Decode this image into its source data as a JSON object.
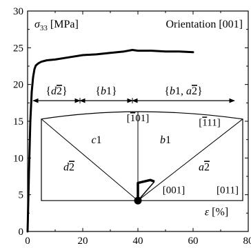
{
  "chart_data": {
    "type": "line",
    "ylabel": "σ33 [MPa]",
    "ylabel_parts": {
      "symbol": "σ",
      "subscript": "33",
      "unit": "[MPa]"
    },
    "xlabel": "ε [%]",
    "xlabel_parts": {
      "symbol": "ε",
      "unit": "[%]"
    },
    "annotation": "Orientation [001]",
    "xlim": [
      0,
      80
    ],
    "ylim": [
      0,
      30
    ],
    "xticks": [
      0,
      20,
      40,
      60,
      80
    ],
    "yticks": [
      0,
      5,
      10,
      15,
      20,
      25,
      30
    ],
    "grid": false,
    "series": [
      {
        "x": [
          0,
          0.5,
          1.0,
          1.5,
          2.0,
          2.5,
          3,
          4,
          5,
          7,
          10,
          15,
          20,
          25,
          30,
          35,
          38,
          40,
          45,
          50,
          55,
          60
        ],
        "y": [
          0,
          8,
          15,
          19,
          21,
          22.1,
          22.6,
          22.9,
          23.1,
          23.3,
          23.4,
          23.7,
          24.0,
          24.1,
          24.3,
          24.5,
          24.7,
          24.6,
          24.6,
          24.5,
          24.5,
          24.4
        ]
      }
    ],
    "regions": [
      {
        "label": "{d2}",
        "main": "d2",
        "bar": "2",
        "x": [
          2,
          19
        ],
        "y": 17.8
      },
      {
        "label": "{b1}",
        "main": "b1",
        "x": [
          19,
          38
        ],
        "y": 17.8
      },
      {
        "label": "{b1, a2}",
        "main": "b1, a2",
        "bar": "2",
        "x": [
          38,
          75
        ],
        "y": 17.8
      }
    ],
    "inset": {
      "zones": [
        "d2",
        "c1",
        "b1",
        "a2"
      ],
      "zone_labels": [
        {
          "main": "d",
          "bar": "2"
        },
        {
          "main": "c1"
        },
        {
          "main": "b1"
        },
        {
          "main": "a",
          "bar": "2"
        }
      ],
      "poles": [
        "[101]",
        "[111]",
        "[001]",
        "[011]"
      ],
      "pole_labels": [
        {
          "prefix": "[",
          "bar": "1",
          "rest": "01]"
        },
        {
          "prefix": "[",
          "bar": "1",
          "rest": "11]"
        },
        {
          "text": "[001]"
        },
        {
          "text": "[011]"
        }
      ]
    }
  }
}
